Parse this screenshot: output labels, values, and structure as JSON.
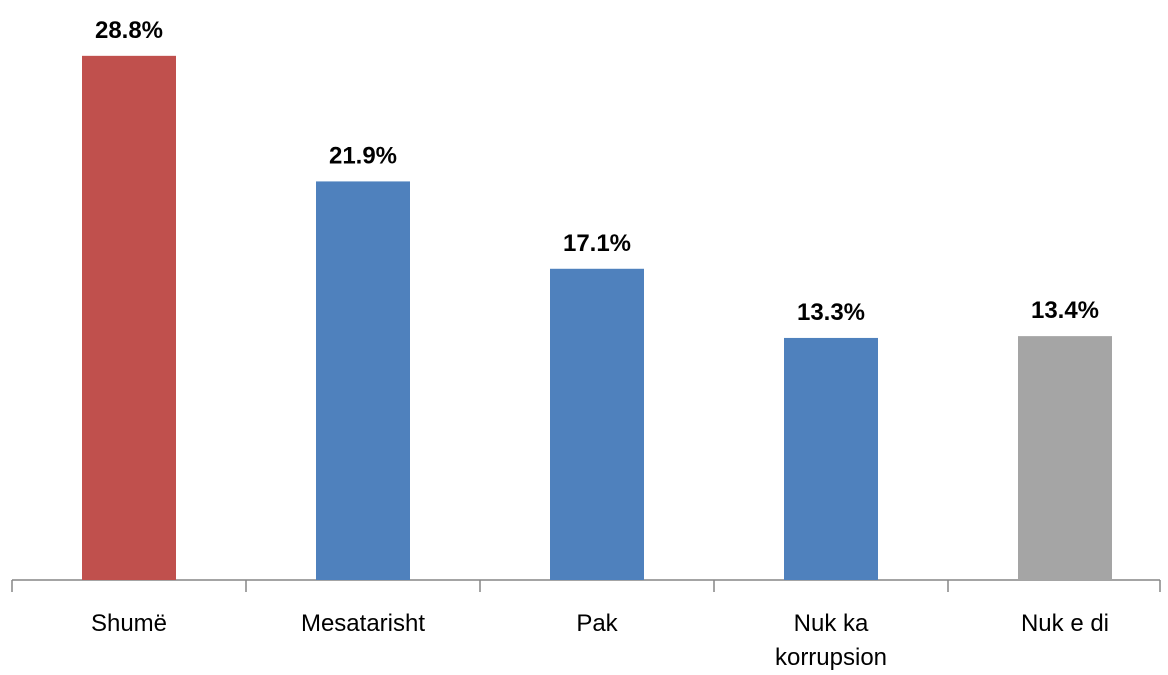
{
  "chart_data": {
    "type": "bar",
    "categories": [
      "Shumë",
      "Mesatarisht",
      "Pak",
      "Nuk ka korrupsion",
      "Nuk e di"
    ],
    "values": [
      28.8,
      21.9,
      17.1,
      13.3,
      13.4
    ],
    "value_labels": [
      "28.8%",
      "21.9%",
      "17.1%",
      "13.3%",
      "13.4%"
    ],
    "colors": [
      "#c0504d",
      "#4f81bd",
      "#4f81bd",
      "#4f81bd",
      "#a5a5a5"
    ],
    "ylim": [
      0,
      30
    ]
  }
}
